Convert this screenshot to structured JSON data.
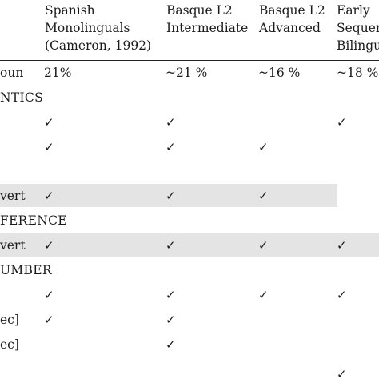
{
  "columns": [
    {
      "lines": [
        "Spanish",
        "Monolinguals",
        "(Cameron, 1992)"
      ]
    },
    {
      "lines": [
        "Basque L2",
        "Intermediate"
      ]
    },
    {
      "lines": [
        "Basque L2",
        "Advanced"
      ]
    },
    {
      "lines": [
        "Early",
        "Sequen",
        "Bilingu"
      ]
    }
  ],
  "rows": {
    "noun": {
      "label": "oun",
      "values": [
        "21%",
        "~21 %",
        "~16 %",
        "~18 %"
      ]
    },
    "semantics_header": "NTICS",
    "sem1": {
      "label": "",
      "checks": [
        "✓",
        "✓",
        "",
        "✓"
      ]
    },
    "sem2": {
      "label": "",
      "checks": [
        "✓",
        "✓",
        "✓",
        ""
      ]
    },
    "overt1": {
      "label": "vert",
      "checks": [
        "✓",
        "✓",
        "✓",
        ""
      ]
    },
    "reference_header": "FERENCE",
    "overt2": {
      "label": "vert",
      "checks": [
        "✓",
        "✓",
        "✓",
        "✓"
      ]
    },
    "number_header": "UMBER",
    "num1": {
      "label": "",
      "checks": [
        "✓",
        "✓",
        "✓",
        "✓"
      ]
    },
    "num2": {
      "label": "ec]",
      "checks": [
        "✓",
        "✓",
        "",
        ""
      ]
    },
    "num3": {
      "label": "ec]",
      "checks": [
        "",
        "✓",
        "",
        ""
      ]
    }
  },
  "colors": {
    "shade": "#e4e4e4",
    "rule": "#222222",
    "text": "#1a1a1a"
  }
}
